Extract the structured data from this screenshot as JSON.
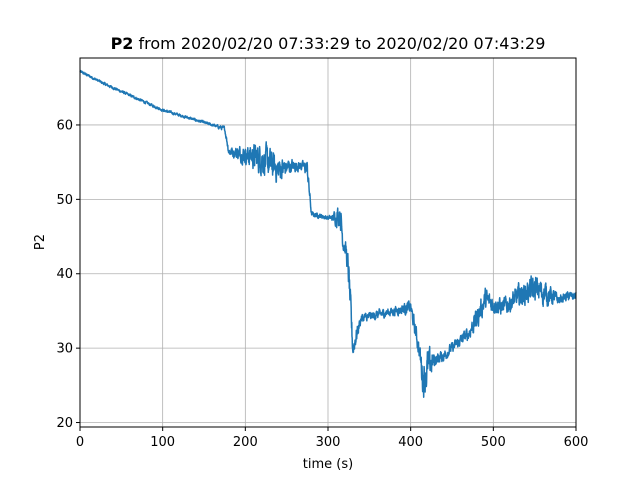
{
  "chart_data": {
    "type": "line",
    "title_bold": "P2",
    "title_rest": "from 2020/02/20 07:33:29 to 2020/02/20 07:43:29",
    "xlabel": "time (s)",
    "ylabel": "P2",
    "xlim": [
      0,
      600
    ],
    "ylim": [
      19.4,
      69.0
    ],
    "x_ticks": [
      0,
      100,
      200,
      300,
      400,
      500,
      600
    ],
    "x_tick_labels": [
      "0",
      "100",
      "200",
      "300",
      "400",
      "500",
      "600"
    ],
    "y_ticks": [
      20,
      30,
      40,
      50,
      60
    ],
    "y_tick_labels": [
      "20",
      "30",
      "40",
      "50",
      "60"
    ],
    "grid": true,
    "legend": "none",
    "line_color": "#1f77b4",
    "series": [
      {
        "x": [
          0,
          30,
          60,
          100,
          130,
          160,
          175,
          180,
          200,
          220,
          240,
          255,
          270,
          275,
          280,
          290,
          300,
          305,
          310,
          315,
          318,
          322,
          325,
          330,
          340,
          360,
          380,
          400,
          410,
          415,
          420,
          425,
          430,
          440,
          450,
          460,
          470,
          480,
          490,
          500,
          510,
          520,
          530,
          540,
          550,
          560,
          570,
          580,
          590,
          600
        ],
        "y": [
          67.2,
          65.5,
          64.0,
          62.0,
          61.0,
          60.0,
          59.5,
          56.5,
          56.0,
          55.5,
          54.0,
          54.5,
          54.5,
          54.0,
          48.0,
          47.8,
          47.5,
          47.5,
          47.8,
          48.0,
          44.5,
          43.0,
          40.0,
          30.0,
          34.0,
          34.5,
          35.0,
          35.5,
          30.0,
          26.0,
          27.0,
          28.0,
          28.5,
          29.0,
          30.0,
          31.0,
          32.0,
          34.0,
          36.5,
          36.0,
          35.5,
          36.0,
          37.0,
          37.5,
          38.0,
          37.5,
          37.0,
          36.5,
          37.0,
          37.0
        ],
        "amp": [
          0.3,
          0.3,
          0.3,
          0.3,
          0.3,
          0.3,
          0.5,
          1.0,
          2.0,
          3.5,
          3.0,
          1.5,
          1.0,
          2.0,
          0.6,
          0.5,
          0.5,
          0.6,
          2.0,
          3.0,
          2.0,
          2.0,
          3.5,
          2.5,
          1.0,
          1.0,
          1.0,
          1.5,
          2.0,
          4.0,
          4.5,
          3.0,
          1.5,
          1.2,
          1.2,
          1.2,
          1.5,
          2.5,
          2.5,
          2.0,
          2.0,
          2.0,
          2.5,
          2.5,
          3.0,
          3.0,
          2.0,
          1.0,
          1.0,
          1.0
        ]
      }
    ]
  }
}
